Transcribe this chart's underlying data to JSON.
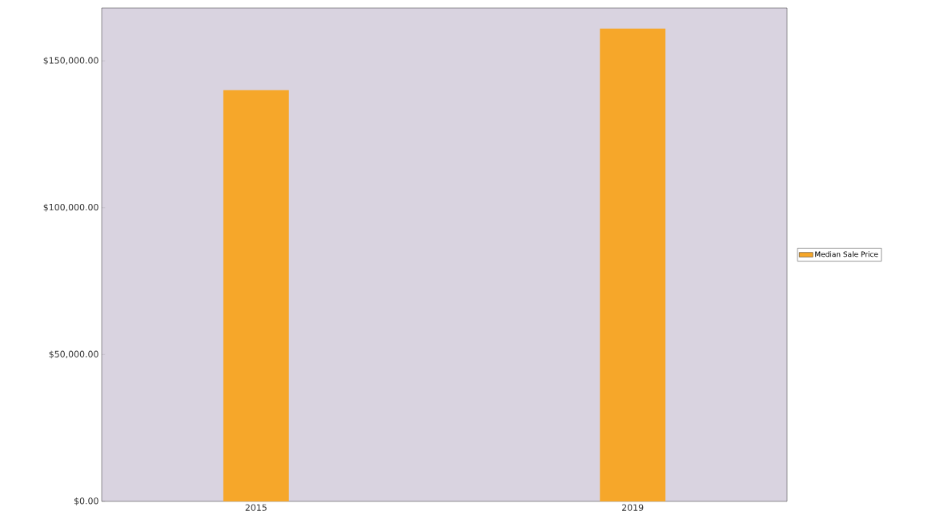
{
  "chart_data": {
    "type": "bar",
    "categories": [
      "2015",
      "2019"
    ],
    "series": [
      {
        "name": "Median Sale Price",
        "color": "#f6a72a",
        "values": [
          140000,
          161000
        ]
      }
    ],
    "ylim": [
      0,
      168000
    ],
    "yticks": [
      {
        "value": 0,
        "label": "$0.00"
      },
      {
        "value": 50000,
        "label": "$50,000.00"
      },
      {
        "value": 100000,
        "label": "$100,000.00"
      },
      {
        "value": 150000,
        "label": "$150,000.00"
      }
    ],
    "grid": false,
    "legend": "right"
  }
}
